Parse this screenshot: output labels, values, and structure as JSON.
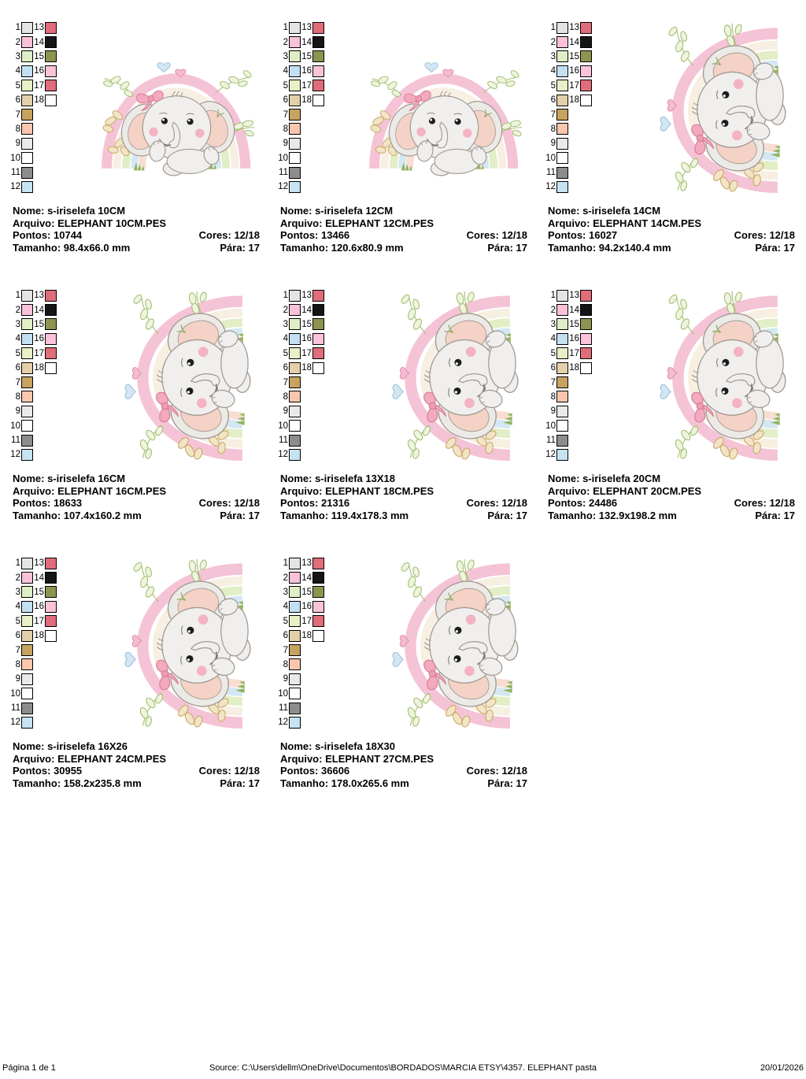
{
  "field_labels": {
    "nome": "Nome:",
    "arquivo": "Arquivo:",
    "pontos": "Pontos:",
    "cores": "Cores:",
    "tamanho": "Tamanho:",
    "para": "Pára:"
  },
  "palette": [
    {
      "num": "1",
      "hex": "#e4e4e4"
    },
    {
      "num": "2",
      "hex": "#f9c2d8"
    },
    {
      "num": "3",
      "hex": "#dfeec6"
    },
    {
      "num": "4",
      "hex": "#c3e0f2"
    },
    {
      "num": "5",
      "hex": "#e7f0c6"
    },
    {
      "num": "6",
      "hex": "#e3cfa9"
    },
    {
      "num": "7",
      "hex": "#c6a35f"
    },
    {
      "num": "8",
      "hex": "#fbc6ae"
    },
    {
      "num": "9",
      "hex": "#e9e9e7"
    },
    {
      "num": "10",
      "hex": "#ffffff"
    },
    {
      "num": "11",
      "hex": "#8c8c8c"
    },
    {
      "num": "12",
      "hex": "#c6e3f4"
    },
    {
      "num": "13",
      "hex": "#e06d79"
    },
    {
      "num": "14",
      "hex": "#151515"
    },
    {
      "num": "15",
      "hex": "#8e9450"
    },
    {
      "num": "16",
      "hex": "#fbc3da"
    },
    {
      "num": "17",
      "hex": "#e06d79"
    },
    {
      "num": "18",
      "hex": "#ffffff"
    }
  ],
  "cards": [
    {
      "orientation": "horizontal",
      "nome": "s-iriselefa 10CM",
      "arquivo": "ELEPHANT 10CM.PES",
      "pontos": "10744",
      "cores": "12/18",
      "tamanho": "98.4x66.0 mm",
      "para": "17"
    },
    {
      "orientation": "horizontal",
      "nome": "s-iriselefa 12CM",
      "arquivo": "ELEPHANT 12CM.PES",
      "pontos": "13466",
      "cores": "12/18",
      "tamanho": "120.6x80.9 mm",
      "para": "17"
    },
    {
      "orientation": "vertical",
      "nome": "s-iriselefa 14CM",
      "arquivo": "ELEPHANT 14CM.PES",
      "pontos": "16027",
      "cores": "12/18",
      "tamanho": "94.2x140.4 mm",
      "para": "17"
    },
    {
      "orientation": "vertical",
      "nome": "s-iriselefa 16CM",
      "arquivo": "ELEPHANT 16CM.PES",
      "pontos": "18633",
      "cores": "12/18",
      "tamanho": "107.4x160.2 mm",
      "para": "17"
    },
    {
      "orientation": "vertical",
      "nome": "s-iriselefa 13X18",
      "arquivo": "ELEPHANT 18CM.PES",
      "pontos": "21316",
      "cores": "12/18",
      "tamanho": "119.4x178.3 mm",
      "para": "17"
    },
    {
      "orientation": "vertical",
      "nome": "s-iriselefa 20CM",
      "arquivo": "ELEPHANT 20CM.PES",
      "pontos": "24486",
      "cores": "12/18",
      "tamanho": "132.9x198.2 mm",
      "para": "17"
    },
    {
      "orientation": "vertical",
      "nome": "s-iriselefa 16X26",
      "arquivo": "ELEPHANT 24CM.PES",
      "pontos": "30955",
      "cores": "12/18",
      "tamanho": "158.2x235.8 mm",
      "para": "17"
    },
    {
      "orientation": "vertical",
      "nome": "s-iriselefa 18X30",
      "arquivo": "ELEPHANT 27CM.PES",
      "pontos": "36606",
      "cores": "12/18",
      "tamanho": "178.0x265.6 mm",
      "para": "17"
    }
  ],
  "footer": {
    "page_label": "Página 1 de 1",
    "source": "Source: C:\\Users\\dellm\\OneDrive\\Documentos\\BORDADOS\\MARCIA ETSY\\4357. ELEPHANT pasta",
    "date": "20/01/2026"
  }
}
